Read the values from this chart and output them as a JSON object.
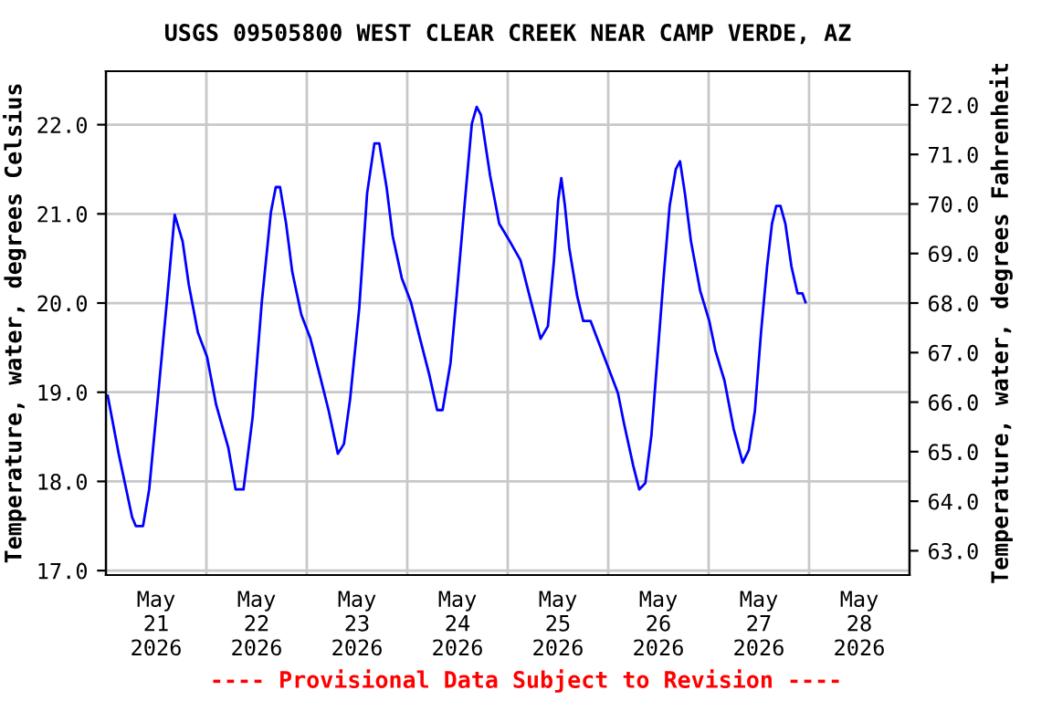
{
  "chart_data": {
    "type": "line",
    "title": "USGS 09505800 WEST CLEAR CREEK NEAR CAMP VERDE, AZ",
    "ylabel": "Temperature, water, degrees Celsius",
    "y2label": "Temperature, water, degrees Fahrenheit",
    "annotations": [
      "---- Provisional Data Subject to Revision ----"
    ],
    "x": [
      "2026-05-21T00:26",
      "2026-05-21T03:03",
      "2026-05-21T06:15",
      "2026-05-21T07:08",
      "2026-05-21T08:52",
      "2026-05-21T10:20",
      "2026-05-21T12:31",
      "2026-05-21T14:41",
      "2026-05-21T16:26",
      "2026-05-21T18:20",
      "2026-05-21T19:47",
      "2026-05-21T21:58",
      "2026-05-22T00:09",
      "2026-05-22T02:20",
      "2026-05-22T05:14",
      "2026-05-22T06:59",
      "2026-05-22T08:52",
      "2026-05-22T11:03",
      "2026-05-22T13:14",
      "2026-05-22T15:25",
      "2026-05-22T16:35",
      "2026-05-22T17:36",
      "2026-05-22T19:03",
      "2026-05-22T20:31",
      "2026-05-22T22:41",
      "2026-05-23T00:52",
      "2026-05-23T03:03",
      "2026-05-23T05:14",
      "2026-05-23T07:25",
      "2026-05-23T08:52",
      "2026-05-23T10:20",
      "2026-05-23T12:31",
      "2026-05-23T14:24",
      "2026-05-23T16:09",
      "2026-05-23T17:19",
      "2026-05-23T19:03",
      "2026-05-23T20:31",
      "2026-05-23T22:41",
      "2026-05-24T00:52",
      "2026-05-24T03:03",
      "2026-05-24T05:14",
      "2026-05-24T07:08",
      "2026-05-24T08:26",
      "2026-05-24T10:20",
      "2026-05-24T11:47",
      "2026-05-24T13:40",
      "2026-05-24T15:25",
      "2026-05-24T16:35",
      "2026-05-24T17:36",
      "2026-05-24T19:47",
      "2026-05-24T21:58",
      "2026-05-25T00:09",
      "2026-05-25T03:03",
      "2026-05-25T05:58",
      "2026-05-25T07:51",
      "2026-05-25T09:36",
      "2026-05-25T11:03",
      "2026-05-25T12:04",
      "2026-05-25T12:48",
      "2026-05-25T13:40",
      "2026-05-25T14:41",
      "2026-05-25T16:35",
      "2026-05-25T18:02",
      "2026-05-25T19:47",
      "2026-05-25T21:58",
      "2026-05-26T00:09",
      "2026-05-26T02:20",
      "2026-05-26T03:47",
      "2026-05-26T05:58",
      "2026-05-26T07:25",
      "2026-05-26T08:52",
      "2026-05-26T10:20",
      "2026-05-26T11:47",
      "2026-05-26T13:14",
      "2026-05-26T14:41",
      "2026-05-26T16:09",
      "2026-05-26T17:10",
      "2026-05-26T18:20",
      "2026-05-26T19:47",
      "2026-05-26T21:58",
      "2026-05-27T00:09",
      "2026-05-27T01:36",
      "2026-05-27T03:47",
      "2026-05-27T05:58",
      "2026-05-27T08:09",
      "2026-05-27T09:36",
      "2026-05-27T11:03",
      "2026-05-27T12:31",
      "2026-05-27T13:58",
      "2026-05-27T15:08",
      "2026-05-27T16:09",
      "2026-05-27T17:10",
      "2026-05-27T18:20",
      "2026-05-27T19:47",
      "2026-05-27T21:14",
      "2026-05-27T22:24",
      "2026-05-27T23:08"
    ],
    "series": [
      {
        "color": "#0000ff",
        "values": [
          18.96,
          18.31,
          17.6,
          17.5,
          17.5,
          17.91,
          18.99,
          20.08,
          20.99,
          20.69,
          20.21,
          19.67,
          19.4,
          18.86,
          18.38,
          17.91,
          17.91,
          18.72,
          20.01,
          21.02,
          21.3,
          21.3,
          20.89,
          20.35,
          19.87,
          19.6,
          19.2,
          18.79,
          18.31,
          18.42,
          18.92,
          19.94,
          21.23,
          21.79,
          21.79,
          21.3,
          20.75,
          20.28,
          20.01,
          19.6,
          19.2,
          18.8,
          18.8,
          19.33,
          20.08,
          21.09,
          22.01,
          22.2,
          22.11,
          21.43,
          20.89,
          20.72,
          20.48,
          19.94,
          19.6,
          19.74,
          20.48,
          21.16,
          21.4,
          21.09,
          20.62,
          20.08,
          19.8,
          19.8,
          19.53,
          19.26,
          18.99,
          18.65,
          18.18,
          17.91,
          17.98,
          18.52,
          19.4,
          20.28,
          21.09,
          21.5,
          21.59,
          21.23,
          20.69,
          20.14,
          19.8,
          19.47,
          19.13,
          18.59,
          18.21,
          18.35,
          18.79,
          19.67,
          20.41,
          20.89,
          21.09,
          21.09,
          20.89,
          20.41,
          20.11,
          20.11,
          20.01
        ]
      }
    ],
    "xlim": [
      "2026-05-21T00:00",
      "2026-05-29T00:00"
    ],
    "xticks": [
      {
        "value": "2026-05-21T00:00",
        "label": null
      },
      {
        "value": "2026-05-22T00:00",
        "label": null
      },
      {
        "value": "2026-05-23T00:00",
        "label": null
      },
      {
        "value": "2026-05-24T00:00",
        "label": null
      },
      {
        "value": "2026-05-25T00:00",
        "label": null
      },
      {
        "value": "2026-05-26T00:00",
        "label": null
      },
      {
        "value": "2026-05-27T00:00",
        "label": null
      },
      {
        "value": "2026-05-28T00:00",
        "label": null
      },
      {
        "value": "2026-05-29T00:00",
        "label": null
      },
      {
        "value": "2026-05-21T12:00",
        "label": "May\n21\n2026"
      },
      {
        "value": "2026-05-22T12:00",
        "label": "May\n22\n2026"
      },
      {
        "value": "2026-05-23T12:00",
        "label": "May\n23\n2026"
      },
      {
        "value": "2026-05-24T12:00",
        "label": "May\n24\n2026"
      },
      {
        "value": "2026-05-25T12:00",
        "label": "May\n25\n2026"
      },
      {
        "value": "2026-05-26T12:00",
        "label": "May\n26\n2026"
      },
      {
        "value": "2026-05-27T12:00",
        "label": "May\n27\n2026"
      },
      {
        "value": "2026-05-28T12:00",
        "label": "May\n28\n2026"
      }
    ],
    "ylim": [
      16.95,
      22.6
    ],
    "yticks": [
      {
        "value": 17,
        "label": "17.0"
      },
      {
        "value": 18,
        "label": "18.0"
      },
      {
        "value": 19,
        "label": "19.0"
      },
      {
        "value": 20,
        "label": "20.0"
      },
      {
        "value": 21,
        "label": "21.0"
      },
      {
        "value": 22,
        "label": "22.0"
      }
    ],
    "y2lim": [
      62.51,
      72.68
    ],
    "y2ticks": [
      {
        "value": 63,
        "label": "63.0"
      },
      {
        "value": 64,
        "label": "64.0"
      },
      {
        "value": 65,
        "label": "65.0"
      },
      {
        "value": 66,
        "label": "66.0"
      },
      {
        "value": 67,
        "label": "67.0"
      },
      {
        "value": 68,
        "label": "68.0"
      },
      {
        "value": 69,
        "label": "69.0"
      },
      {
        "value": 70,
        "label": "70.0"
      },
      {
        "value": 71,
        "label": "71.0"
      },
      {
        "value": 72,
        "label": "72.0"
      }
    ],
    "grid": true,
    "legend": false,
    "marker": "none",
    "line_style": "solid"
  }
}
